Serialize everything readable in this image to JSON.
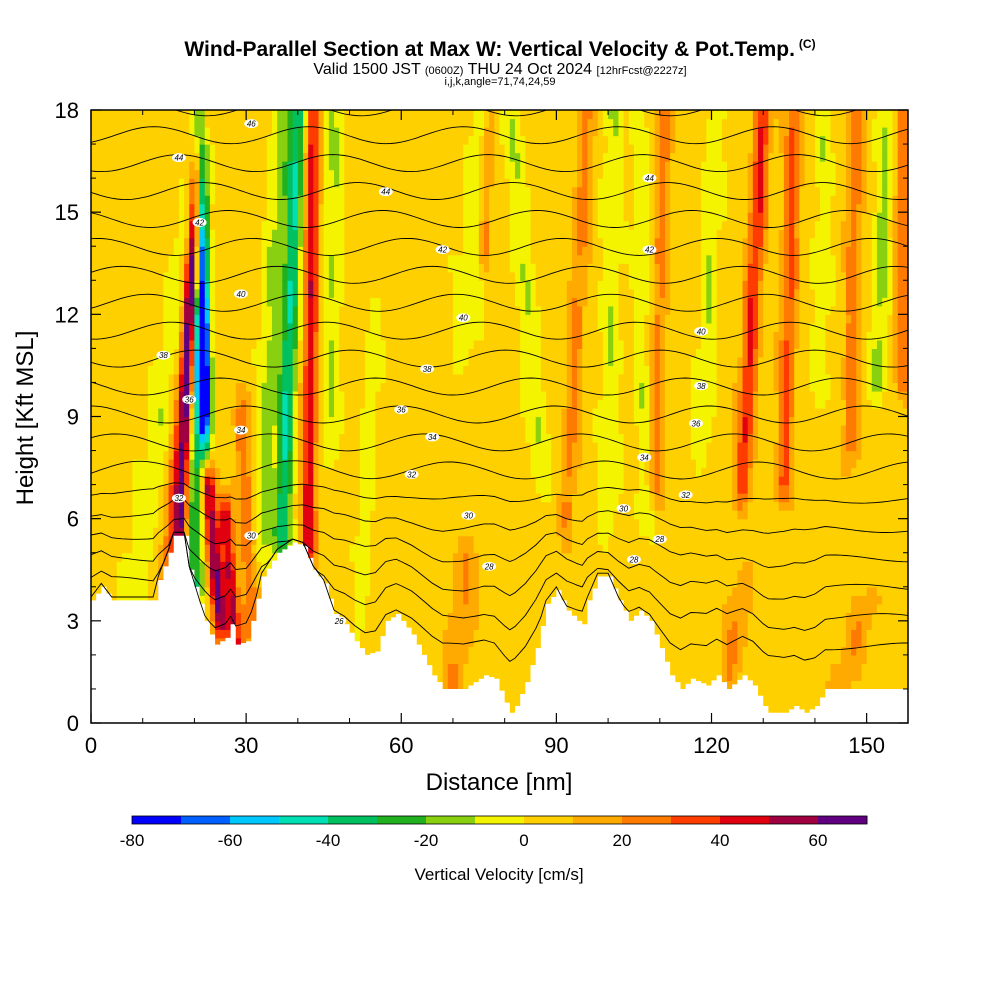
{
  "title": {
    "main": "Wind-Parallel Section at Max W: Vertical Velocity & Pot.Temp.",
    "copyright": "(C)",
    "valid": "Valid 1500 JST",
    "valid_z": "(0600Z)",
    "date": "THU 24 Oct 2024",
    "fcst": "[12hrFcst@2227z]",
    "indices": "i,j,k,angle=71,74,24,59"
  },
  "chart_data": {
    "type": "heatmap",
    "xlabel": "Distance [nm]",
    "ylabel": "Height [Kft MSL]",
    "xlim": [
      0,
      158
    ],
    "ylim": [
      0,
      18
    ],
    "x_ticks": [
      0,
      30,
      60,
      90,
      120,
      150
    ],
    "y_ticks": [
      0,
      3,
      6,
      9,
      12,
      15,
      18
    ],
    "colorbar": {
      "label": "Vertical Velocity [cm/s]",
      "ticks": [
        -80,
        -60,
        -40,
        -20,
        0,
        20,
        40,
        60
      ],
      "bounds": [
        -80,
        -70,
        -60,
        -50,
        -40,
        -30,
        -20,
        -10,
        0,
        10,
        20,
        30,
        40,
        50,
        60,
        70
      ],
      "colors": [
        "#0000ff",
        "#0060ff",
        "#00c8ff",
        "#00e0b4",
        "#00c060",
        "#20b020",
        "#88d010",
        "#f4f400",
        "#ffd000",
        "#ffaa00",
        "#ff7a00",
        "#ff3c00",
        "#e00010",
        "#a00040",
        "#600080"
      ]
    },
    "terrain": [
      [
        0,
        3.6
      ],
      [
        2,
        4.0
      ],
      [
        4,
        3.6
      ],
      [
        12,
        3.6
      ],
      [
        13,
        4.2
      ],
      [
        15,
        5.0
      ],
      [
        16,
        5.5
      ],
      [
        18,
        5.5
      ],
      [
        19,
        4.5
      ],
      [
        20,
        4.0
      ],
      [
        22,
        3.0
      ],
      [
        23,
        2.6
      ],
      [
        24,
        2.3
      ],
      [
        26,
        2.5
      ],
      [
        27,
        2.9
      ],
      [
        28,
        2.3
      ],
      [
        30,
        2.4
      ],
      [
        31,
        3.0
      ],
      [
        33,
        4.3
      ],
      [
        36,
        5.0
      ],
      [
        39,
        5.3
      ],
      [
        41,
        5.2
      ],
      [
        43,
        4.5
      ],
      [
        45,
        4.1
      ],
      [
        47,
        3.2
      ],
      [
        49,
        2.9
      ],
      [
        51,
        2.4
      ],
      [
        53,
        2.0
      ],
      [
        55,
        2.1
      ],
      [
        57,
        3.0
      ],
      [
        59,
        3.2
      ],
      [
        62,
        2.6
      ],
      [
        64,
        2.0
      ],
      [
        66,
        1.4
      ],
      [
        68,
        1.0
      ],
      [
        72,
        1.0
      ],
      [
        76,
        1.4
      ],
      [
        78,
        1.3
      ],
      [
        80,
        0.6
      ],
      [
        81,
        0.3
      ],
      [
        82,
        0.5
      ],
      [
        84,
        1.2
      ],
      [
        86,
        2.2
      ],
      [
        88,
        3.5
      ],
      [
        90,
        3.9
      ],
      [
        92,
        3.3
      ],
      [
        94,
        3.0
      ],
      [
        95,
        2.9
      ],
      [
        96,
        3.6
      ],
      [
        98,
        4.3
      ],
      [
        100,
        4.3
      ],
      [
        102,
        3.6
      ],
      [
        104,
        3.0
      ],
      [
        106,
        3.3
      ],
      [
        108,
        3.0
      ],
      [
        110,
        2.2
      ],
      [
        112,
        1.4
      ],
      [
        114,
        1.0
      ],
      [
        116,
        1.3
      ],
      [
        119,
        1.1
      ],
      [
        121,
        1.4
      ],
      [
        123,
        1.0
      ],
      [
        126,
        1.4
      ],
      [
        128,
        1.1
      ],
      [
        130,
        0.5
      ],
      [
        131,
        0.3
      ],
      [
        134,
        0.3
      ],
      [
        136,
        0.5
      ],
      [
        138,
        0.3
      ],
      [
        140,
        0.5
      ],
      [
        142,
        1.0
      ],
      [
        158,
        1.0
      ]
    ],
    "theta_levels": [
      25,
      26,
      27,
      28,
      29,
      30,
      31,
      32,
      33,
      34,
      35,
      36,
      37,
      38,
      39,
      40,
      41,
      42,
      43,
      44,
      45,
      46
    ],
    "theta_labels": [
      {
        "value": "26",
        "x": 48,
        "y": 3.0
      },
      {
        "value": "28",
        "x": 77,
        "y": 4.6
      },
      {
        "value": "28",
        "x": 105,
        "y": 4.8
      },
      {
        "value": "28",
        "x": 110,
        "y": 5.4
      },
      {
        "value": "30",
        "x": 31,
        "y": 5.5
      },
      {
        "value": "30",
        "x": 73,
        "y": 6.1
      },
      {
        "value": "30",
        "x": 103,
        "y": 6.3
      },
      {
        "value": "32",
        "x": 17,
        "y": 6.6
      },
      {
        "value": "32",
        "x": 62,
        "y": 7.3
      },
      {
        "value": "32",
        "x": 115,
        "y": 6.7
      },
      {
        "value": "34",
        "x": 29,
        "y": 8.6
      },
      {
        "value": "34",
        "x": 66,
        "y": 8.4
      },
      {
        "value": "34",
        "x": 107,
        "y": 7.8
      },
      {
        "value": "36",
        "x": 19,
        "y": 9.5
      },
      {
        "value": "36",
        "x": 60,
        "y": 9.2
      },
      {
        "value": "36",
        "x": 117,
        "y": 8.8
      },
      {
        "value": "38",
        "x": 14,
        "y": 10.8
      },
      {
        "value": "38",
        "x": 65,
        "y": 10.4
      },
      {
        "value": "38",
        "x": 118,
        "y": 9.9
      },
      {
        "value": "40",
        "x": 29,
        "y": 12.6
      },
      {
        "value": "40",
        "x": 72,
        "y": 11.9
      },
      {
        "value": "40",
        "x": 118,
        "y": 11.5
      },
      {
        "value": "42",
        "x": 21,
        "y": 14.7
      },
      {
        "value": "42",
        "x": 68,
        "y": 13.9
      },
      {
        "value": "42",
        "x": 108,
        "y": 13.9
      },
      {
        "value": "44",
        "x": 17,
        "y": 16.6
      },
      {
        "value": "44",
        "x": 57,
        "y": 15.6
      },
      {
        "value": "44",
        "x": 108,
        "y": 16.0
      },
      {
        "value": "46",
        "x": 31,
        "y": 17.6
      }
    ],
    "w_field": {
      "background": 5,
      "plumes": [
        {
          "x0": 8,
          "x1": 22,
          "y0": 3.5,
          "y1": 18,
          "a": -12,
          "w": 2.6
        },
        {
          "x0": 14,
          "x1": 22,
          "y0": 2.5,
          "y1": 18,
          "a": 30,
          "w": 1.5
        },
        {
          "x0": 17,
          "x1": 21,
          "y0": 4,
          "y1": 18,
          "a": 48,
          "w": 1.2
        },
        {
          "x0": 22,
          "x1": 21,
          "y0": 8,
          "y1": 18,
          "a": -80,
          "w": 1.3
        },
        {
          "x0": 20,
          "x1": 21,
          "y0": 4,
          "y1": 12,
          "a": -35,
          "w": 1.8
        },
        {
          "x0": 25,
          "x1": 22,
          "y0": 3,
          "y1": 8,
          "a": 55,
          "w": 1.4
        },
        {
          "x0": 28,
          "x1": 26,
          "y0": 2,
          "y1": 6,
          "a": 45,
          "w": 1.3
        },
        {
          "x0": 31,
          "x1": 29,
          "y0": 3,
          "y1": 9,
          "a": 25,
          "w": 1.5
        },
        {
          "x0": 33,
          "x1": 37,
          "y0": 5,
          "y1": 18,
          "a": -18,
          "w": 2.0
        },
        {
          "x0": 37,
          "x1": 40,
          "y0": 5.5,
          "y1": 18,
          "a": -45,
          "w": 1.6
        },
        {
          "x0": 42,
          "x1": 43,
          "y0": 5,
          "y1": 18,
          "a": 42,
          "w": 1.4
        },
        {
          "x0": 46,
          "x1": 47,
          "y0": 8,
          "y1": 18,
          "a": -15,
          "w": 2.0
        },
        {
          "x0": 52,
          "x1": 55,
          "y0": 3,
          "y1": 12,
          "a": -10,
          "w": 1.6
        },
        {
          "x0": 72,
          "x1": 76,
          "y0": 11,
          "y1": 18,
          "a": -14,
          "w": 2.5
        },
        {
          "x0": 76,
          "x1": 77,
          "y0": 14,
          "y1": 18,
          "a": 22,
          "w": 1.2
        },
        {
          "x0": 87,
          "x1": 81,
          "y0": 7,
          "y1": 18,
          "a": -13,
          "w": 2.2
        },
        {
          "x0": 92,
          "x1": 96,
          "y0": 6,
          "y1": 18,
          "a": 18,
          "w": 1.5
        },
        {
          "x0": 100,
          "x1": 101,
          "y0": 6,
          "y1": 18,
          "a": -14,
          "w": 2.0
        },
        {
          "x0": 107,
          "x1": 106,
          "y0": 6,
          "y1": 18,
          "a": -12,
          "w": 1.6
        },
        {
          "x0": 109,
          "x1": 111,
          "y0": 7,
          "y1": 18,
          "a": 20,
          "w": 1.4
        },
        {
          "x0": 118,
          "x1": 121,
          "y0": 8,
          "y1": 18,
          "a": -14,
          "w": 1.8
        },
        {
          "x0": 126,
          "x1": 130,
          "y0": 7,
          "y1": 18,
          "a": 36,
          "w": 1.6
        },
        {
          "x0": 134,
          "x1": 136,
          "y0": 7,
          "y1": 18,
          "a": 28,
          "w": 1.5
        },
        {
          "x0": 141,
          "x1": 142,
          "y0": 10,
          "y1": 18,
          "a": -12,
          "w": 1.8
        },
        {
          "x0": 147,
          "x1": 148,
          "y0": 8,
          "y1": 18,
          "a": 22,
          "w": 1.5
        },
        {
          "x0": 152,
          "x1": 154,
          "y0": 10,
          "y1": 18,
          "a": -18,
          "w": 1.6
        },
        {
          "x0": 157,
          "x1": 157,
          "y0": 10,
          "y1": 18,
          "a": 24,
          "w": 1.4
        },
        {
          "x0": 70,
          "x1": 73,
          "y0": 1,
          "y1": 5,
          "a": 14,
          "w": 2.5
        },
        {
          "x0": 123,
          "x1": 126,
          "y0": 1,
          "y1": 4,
          "a": 16,
          "w": 2.0
        },
        {
          "x0": 145,
          "x1": 150,
          "y0": 1,
          "y1": 3.5,
          "a": 14,
          "w": 2.5
        }
      ]
    }
  }
}
